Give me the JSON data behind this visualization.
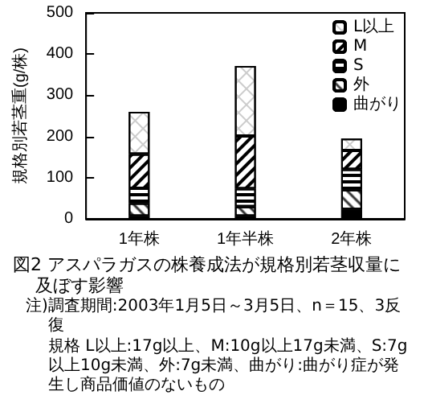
{
  "chart_data": {
    "type": "bar",
    "stacked": true,
    "title": "図2 アスパラガスの株養成法が規格別若茎収量に及ぼす影響",
    "ylabel": "規格別若茎重(g/株)",
    "categories": [
      "1年株",
      "1年半株",
      "2年株"
    ],
    "series": [
      {
        "name": "曲がり",
        "color": "#000000",
        "values": [
          7,
          7,
          23
        ]
      },
      {
        "name": "外",
        "color": "#ffffff",
        "values": [
          31,
          23,
          48
        ]
      },
      {
        "name": "S",
        "color": "#ffffff",
        "values": [
          36,
          43,
          49
        ]
      },
      {
        "name": "M",
        "color": "#ffffff",
        "values": [
          83,
          128,
          46
        ]
      },
      {
        "name": "L以上",
        "color": "#ffffff",
        "values": [
          103,
          170,
          29
        ]
      }
    ],
    "ylim": [
      0,
      500
    ],
    "yticks": [
      0,
      100,
      200,
      300,
      400,
      500
    ],
    "grid": false,
    "legend": "top right",
    "annotations": [
      "注)調査期間:2003年1月5日～3月5日、n＝15、3反復",
      "規格 L以上:17g以上、M:10g以上17g未満、S:7g以上10g未満、外:7g未満、曲がり:曲がり症が発生し商品価値のないもの"
    ]
  }
}
